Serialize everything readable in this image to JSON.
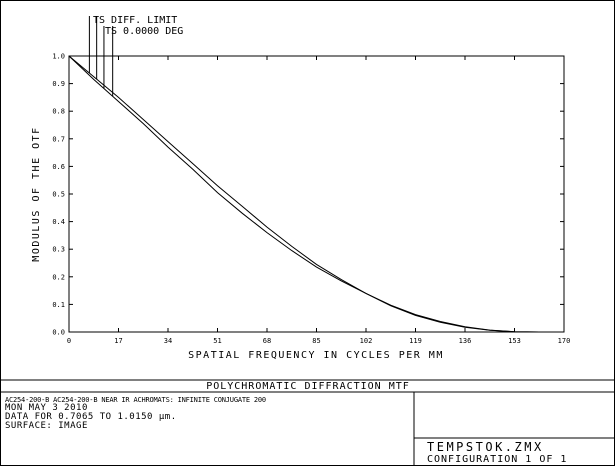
{
  "chart_data": {
    "type": "line",
    "title": "POLYCHROMATIC DIFFRACTION MTF",
    "xlabel": "SPATIAL FREQUENCY IN CYCLES PER MM",
    "ylabel": "MODULUS OF THE OTF",
    "xlim": [
      0,
      170
    ],
    "ylim": [
      0,
      1
    ],
    "x_ticks": [
      "0",
      "17",
      "34",
      "51",
      "68",
      "85",
      "102",
      "119",
      "136",
      "153",
      "170"
    ],
    "y_ticks": [
      "0.0",
      "0.1",
      "0.2",
      "0.3",
      "0.4",
      "0.5",
      "0.6",
      "0.7",
      "0.8",
      "0.9",
      "1.0"
    ],
    "grid": false,
    "legend": [
      "TS DIFF. LIMIT",
      "TS 0.0000 DEG"
    ],
    "series": [
      {
        "name": "TS DIFF. LIMIT",
        "x": [
          0,
          8.5,
          17,
          25.5,
          34,
          42.5,
          51,
          59.5,
          68,
          76.5,
          85,
          93.5,
          102,
          110.5,
          119,
          127.5,
          136,
          144.5,
          153,
          161.5
        ],
        "y": [
          1.0,
          0.925,
          0.85,
          0.77,
          0.69,
          0.61,
          0.53,
          0.455,
          0.38,
          0.31,
          0.245,
          0.19,
          0.14,
          0.095,
          0.06,
          0.035,
          0.017,
          0.006,
          0.001,
          0.0
        ]
      },
      {
        "name": "TS 0.0000 DEG",
        "x": [
          0,
          8.5,
          17,
          25.5,
          34,
          42.5,
          51,
          59.5,
          68,
          76.5,
          85,
          93.5,
          102,
          110.5,
          119,
          127.5,
          136,
          144.5,
          153,
          161.5
        ],
        "y": [
          1.0,
          0.915,
          0.835,
          0.755,
          0.67,
          0.59,
          0.505,
          0.43,
          0.36,
          0.295,
          0.235,
          0.185,
          0.14,
          0.097,
          0.063,
          0.038,
          0.019,
          0.007,
          0.001,
          0.0
        ]
      }
    ]
  },
  "footer": {
    "title": "POLYCHROMATIC DIFFRACTION MTF",
    "lines": [
      "AC254-200-B AC254-200-B NEAR IR ACHROMATS: INFINITE CONJUGATE 200",
      "MON MAY 3 2010",
      "DATA FOR 0.7065 TO 1.0150 µm.",
      "SURFACE: IMAGE"
    ],
    "file": "TEMPSTOK.ZMX",
    "config": "CONFIGURATION 1 OF 1"
  },
  "colors": {
    "line": "#000000",
    "background": "#ffffff"
  }
}
